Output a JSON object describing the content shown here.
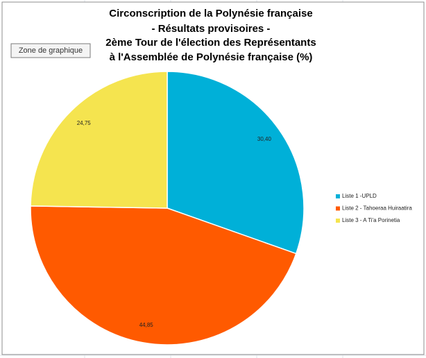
{
  "tooltip": "Zone de graphique",
  "chart_data": {
    "type": "pie",
    "title": [
      "Circonscription  de la Polynésie française",
      "- Résultats provisoires -",
      "2ème Tour de l'élection des Représentants",
      "à l'Assemblée de Polynésie française (%)"
    ],
    "categories": [
      "Liste 1 -UPLD",
      "Liste 2 - Tahoeraa Huiraatira",
      "Liste 3 - A Ti'a Porinetia"
    ],
    "values": [
      30.4,
      44.85,
      24.75
    ],
    "value_labels": [
      "30,40",
      "44,85",
      "24,75"
    ],
    "colors": [
      "#00b0d8",
      "#ff5a00",
      "#f5e44f"
    ],
    "legend": "right"
  }
}
